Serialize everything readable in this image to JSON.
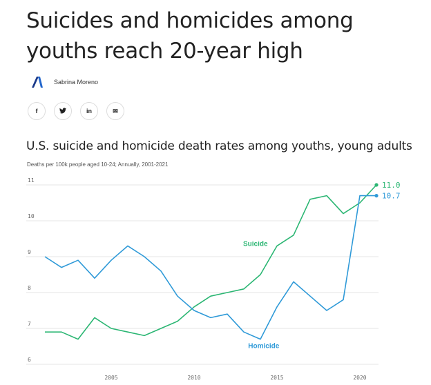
{
  "article": {
    "headline": "Suicides and homicides among youths reach 20-year high",
    "author": "Sabrina Moreno"
  },
  "share": {
    "facebook": "f",
    "twitter": "🐦",
    "linkedin": "in",
    "email": "✉"
  },
  "colors": {
    "suicide": "#2bb673",
    "homicide": "#2f9ad8",
    "logo": "#2266cc"
  },
  "chart_data": {
    "type": "line",
    "title": "U.S. suicide and homicide death rates among youths, young adults",
    "subtitle": "Deaths per 100k people aged 10-24; Annually, 2001-2021",
    "x": [
      2001,
      2002,
      2003,
      2004,
      2005,
      2006,
      2007,
      2008,
      2009,
      2010,
      2011,
      2012,
      2013,
      2014,
      2015,
      2016,
      2017,
      2018,
      2019,
      2020,
      2021
    ],
    "xticks": [
      "2005",
      "2010",
      "2015",
      "2020"
    ],
    "yticks": [
      "6",
      "7",
      "8",
      "9",
      "10",
      "11"
    ],
    "ylim": [
      6,
      11
    ],
    "grid": true,
    "series": [
      {
        "name": "Suicide",
        "color": "#2bb673",
        "values": [
          6.9,
          6.9,
          6.7,
          7.3,
          7.0,
          6.9,
          6.8,
          7.0,
          7.2,
          7.6,
          7.9,
          8.0,
          8.1,
          8.5,
          9.3,
          9.6,
          10.6,
          10.7,
          10.2,
          10.5,
          11.0
        ],
        "end_label": "11.0"
      },
      {
        "name": "Homicide",
        "color": "#2f9ad8",
        "values": [
          9.0,
          8.7,
          8.9,
          8.4,
          8.9,
          9.3,
          9.0,
          8.6,
          7.9,
          7.5,
          7.3,
          7.4,
          6.9,
          6.7,
          7.6,
          8.3,
          7.9,
          7.5,
          7.8,
          10.7,
          10.7
        ],
        "end_label": "10.7"
      }
    ]
  }
}
